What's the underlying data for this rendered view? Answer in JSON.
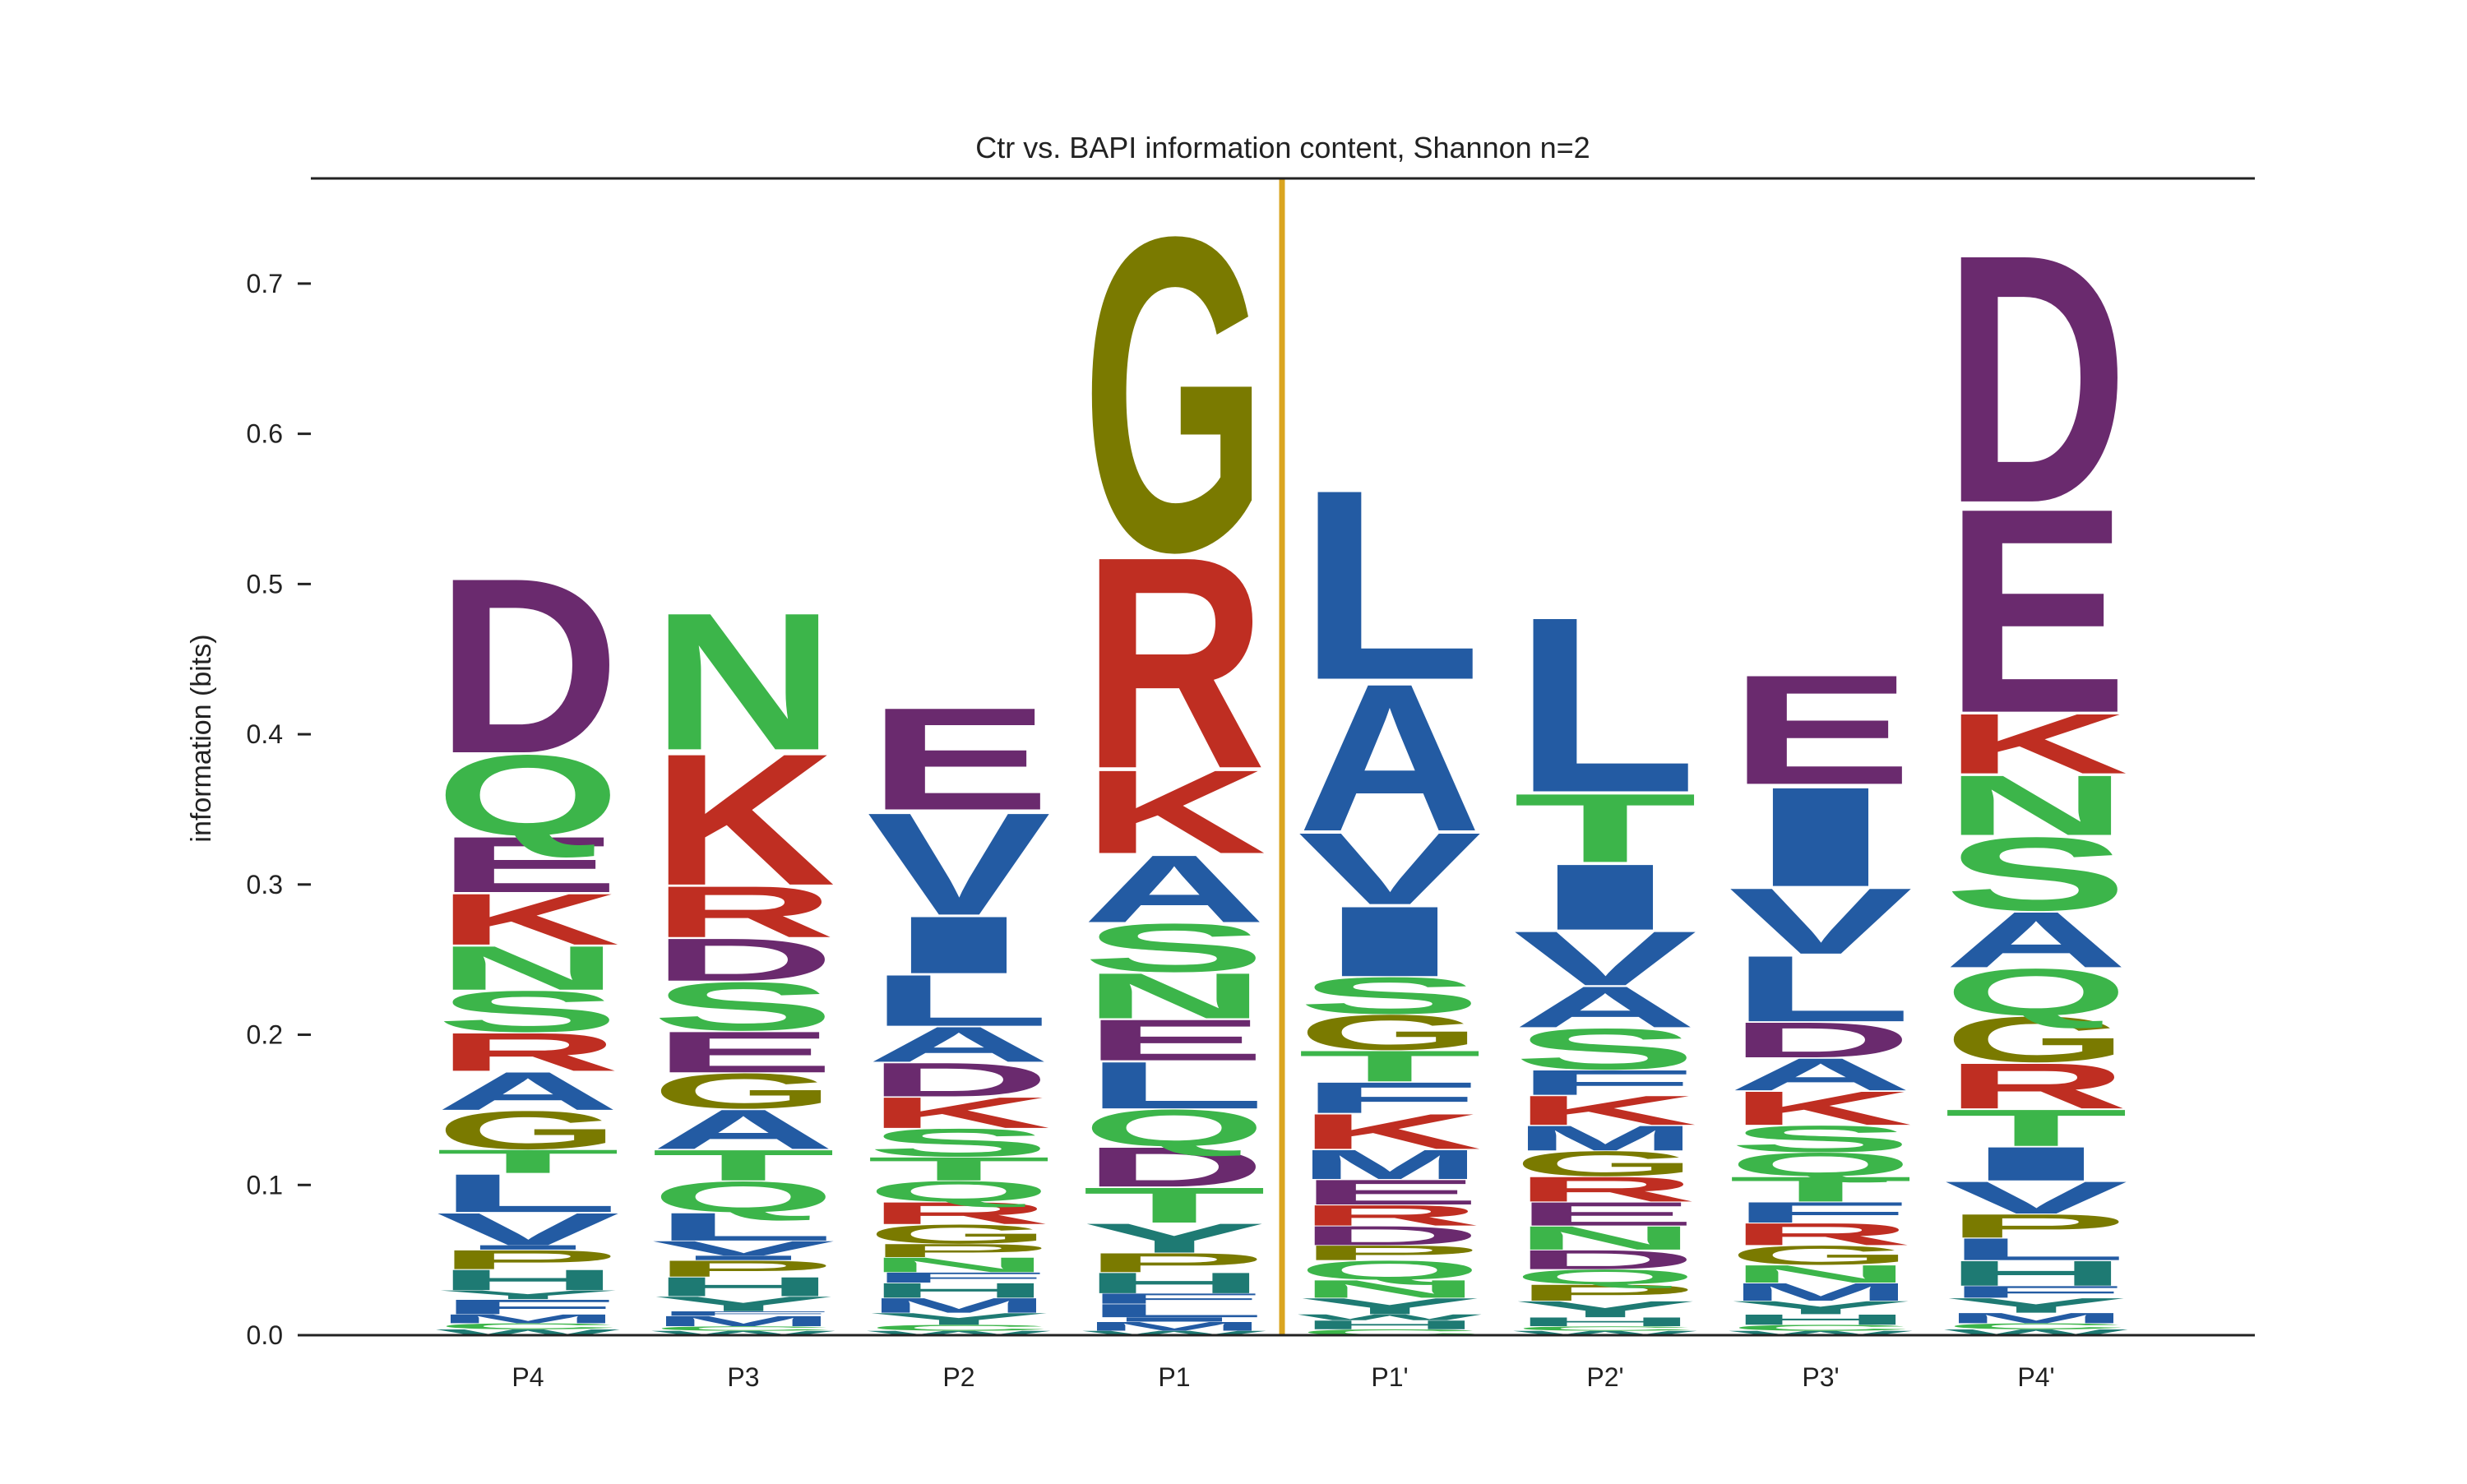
{
  "chart_data": {
    "type": "sequence-logo",
    "title": "Ctr vs. BAPI information content, Shannon n=2",
    "ylabel": "information (bits)",
    "xlabel": "",
    "ylim": [
      0,
      0.77
    ],
    "yticks": [
      "0.0",
      "0.1",
      "0.2",
      "0.3",
      "0.4",
      "0.5",
      "0.6",
      "0.7"
    ],
    "yticks_values": [
      0.0,
      0.1,
      0.2,
      0.3,
      0.4,
      0.5,
      0.6,
      0.7
    ],
    "positions": [
      "P4",
      "P3",
      "P2",
      "P1",
      "P1'",
      "P2'",
      "P3'",
      "P4'"
    ],
    "cleavage_line_color": "#DAA520",
    "colors": {
      "D": "#6A2A6E",
      "E": "#6A2A6E",
      "K": "#BF2E22",
      "R": "#BF2E22",
      "N": "#3CB54A",
      "Q": "#3CB54A",
      "S": "#3CB54A",
      "T": "#3CB54A",
      "C": "#3CB54A",
      "G": "#7A7A00",
      "P": "#7A7A00",
      "A": "#235BA3",
      "V": "#235BA3",
      "L": "#235BA3",
      "I": "#235BA3",
      "M": "#235BA3",
      "F": "#235BA3",
      "H": "#1E7A73",
      "Y": "#1E7A73",
      "W": "#1E7A73"
    },
    "stacks": [
      [
        [
          "W",
          0.004
        ],
        [
          "C",
          0.004
        ],
        [
          "M",
          0.006
        ],
        [
          "F",
          0.01
        ],
        [
          "Y",
          0.006
        ],
        [
          "H",
          0.014
        ],
        [
          "P",
          0.013
        ],
        [
          "I",
          0.003
        ],
        [
          "V",
          0.022
        ],
        [
          "L",
          0.026
        ],
        [
          "T",
          0.016
        ],
        [
          "G",
          0.026
        ],
        [
          "A",
          0.026
        ],
        [
          "R",
          0.026
        ],
        [
          "S",
          0.028
        ],
        [
          "N",
          0.03
        ],
        [
          "K",
          0.035
        ],
        [
          "E",
          0.038
        ],
        [
          "Q",
          0.055
        ],
        [
          "D",
          0.12
        ]
      ],
      [
        [
          "W",
          0.003
        ],
        [
          "C",
          0.003
        ],
        [
          "M",
          0.007
        ],
        [
          "F",
          0.003
        ],
        [
          "Y",
          0.01
        ],
        [
          "H",
          0.013
        ],
        [
          "P",
          0.011
        ],
        [
          "I",
          0.003
        ],
        [
          "V",
          0.01
        ],
        [
          "L",
          0.019
        ],
        [
          "Q",
          0.021
        ],
        [
          "T",
          0.021
        ],
        [
          "A",
          0.027
        ],
        [
          "G",
          0.024
        ],
        [
          "E",
          0.028
        ],
        [
          "S",
          0.033
        ],
        [
          "D",
          0.029
        ],
        [
          "R",
          0.035
        ],
        [
          "K",
          0.09
        ],
        [
          "N",
          0.094
        ]
      ],
      [
        [
          "W",
          0.003
        ],
        [
          "C",
          0.004
        ],
        [
          "Y",
          0.008
        ],
        [
          "M",
          0.01
        ],
        [
          "H",
          0.01
        ],
        [
          "F",
          0.007
        ],
        [
          "N",
          0.01
        ],
        [
          "P",
          0.009
        ],
        [
          "G",
          0.013
        ],
        [
          "R",
          0.015
        ],
        [
          "Q",
          0.014
        ],
        [
          "T",
          0.016
        ],
        [
          "S",
          0.019
        ],
        [
          "K",
          0.021
        ],
        [
          "D",
          0.023
        ],
        [
          "A",
          0.024
        ],
        [
          "L",
          0.035
        ],
        [
          "I",
          0.039
        ],
        [
          "V",
          0.07
        ],
        [
          "E",
          0.07
        ]
      ],
      [
        [
          "W",
          0.003
        ],
        [
          "M",
          0.006
        ],
        [
          "I",
          0.003
        ],
        [
          "L",
          0.009
        ],
        [
          "F",
          0.007
        ],
        [
          "H",
          0.014
        ],
        [
          "P",
          0.013
        ],
        [
          "Y",
          0.02
        ],
        [
          "T",
          0.024
        ],
        [
          "D",
          0.027
        ],
        [
          "Q",
          0.025
        ],
        [
          "L",
          0.032
        ],
        [
          "E",
          0.028
        ],
        [
          "N",
          0.031
        ],
        [
          "S",
          0.033
        ],
        [
          "A",
          0.046
        ],
        [
          "K",
          0.057
        ],
        [
          "R",
          0.145
        ],
        [
          "G",
          0.215
        ]
      ],
      [
        [
          "C",
          0.004
        ],
        [
          "H",
          0.006
        ],
        [
          "W",
          0.004
        ],
        [
          "Y",
          0.011
        ],
        [
          "N",
          0.012
        ],
        [
          "Q",
          0.013
        ],
        [
          "P",
          0.01
        ],
        [
          "D",
          0.013
        ],
        [
          "R",
          0.014
        ],
        [
          "E",
          0.017
        ],
        [
          "M",
          0.02
        ],
        [
          "K",
          0.024
        ],
        [
          "F",
          0.021
        ],
        [
          "T",
          0.021
        ],
        [
          "G",
          0.024
        ],
        [
          "S",
          0.025
        ],
        [
          "I",
          0.048
        ],
        [
          "V",
          0.049
        ],
        [
          "A",
          0.101
        ],
        [
          "L",
          0.13
        ]
      ],
      [
        [
          "W",
          0.003
        ],
        [
          "C",
          0.003
        ],
        [
          "H",
          0.006
        ],
        [
          "Y",
          0.011
        ],
        [
          "P",
          0.011
        ],
        [
          "Q",
          0.01
        ],
        [
          "D",
          0.013
        ],
        [
          "N",
          0.016
        ],
        [
          "E",
          0.016
        ],
        [
          "R",
          0.017
        ],
        [
          "G",
          0.017
        ],
        [
          "M",
          0.017
        ],
        [
          "K",
          0.02
        ],
        [
          "F",
          0.017
        ],
        [
          "S",
          0.028
        ],
        [
          "A",
          0.028
        ],
        [
          "V",
          0.037
        ],
        [
          "I",
          0.045
        ],
        [
          "T",
          0.047
        ],
        [
          "L",
          0.12
        ]
      ],
      [
        [
          "W",
          0.003
        ],
        [
          "C",
          0.004
        ],
        [
          "H",
          0.007
        ],
        [
          "Y",
          0.009
        ],
        [
          "M",
          0.012
        ],
        [
          "N",
          0.012
        ],
        [
          "G",
          0.013
        ],
        [
          "R",
          0.015
        ],
        [
          "F",
          0.014
        ],
        [
          "T",
          0.017
        ],
        [
          "Q",
          0.016
        ],
        [
          "S",
          0.018
        ],
        [
          "K",
          0.023
        ],
        [
          "A",
          0.022
        ],
        [
          "D",
          0.024
        ],
        [
          "L",
          0.045
        ],
        [
          "V",
          0.045
        ],
        [
          "I",
          0.068
        ],
        [
          "E",
          0.075
        ]
      ],
      [
        [
          "W",
          0.004
        ],
        [
          "C",
          0.004
        ],
        [
          "M",
          0.007
        ],
        [
          "Y",
          0.01
        ],
        [
          "F",
          0.008
        ],
        [
          "H",
          0.017
        ],
        [
          "L",
          0.015
        ],
        [
          "P",
          0.016
        ],
        [
          "V",
          0.022
        ],
        [
          "I",
          0.023
        ],
        [
          "T",
          0.025
        ],
        [
          "R",
          0.031
        ],
        [
          "G",
          0.031
        ],
        [
          "Q",
          0.032
        ],
        [
          "A",
          0.038
        ],
        [
          "S",
          0.05
        ],
        [
          "N",
          0.041
        ],
        [
          "K",
          0.041
        ],
        [
          "E",
          0.14
        ],
        [
          "D",
          0.17
        ]
      ]
    ]
  }
}
